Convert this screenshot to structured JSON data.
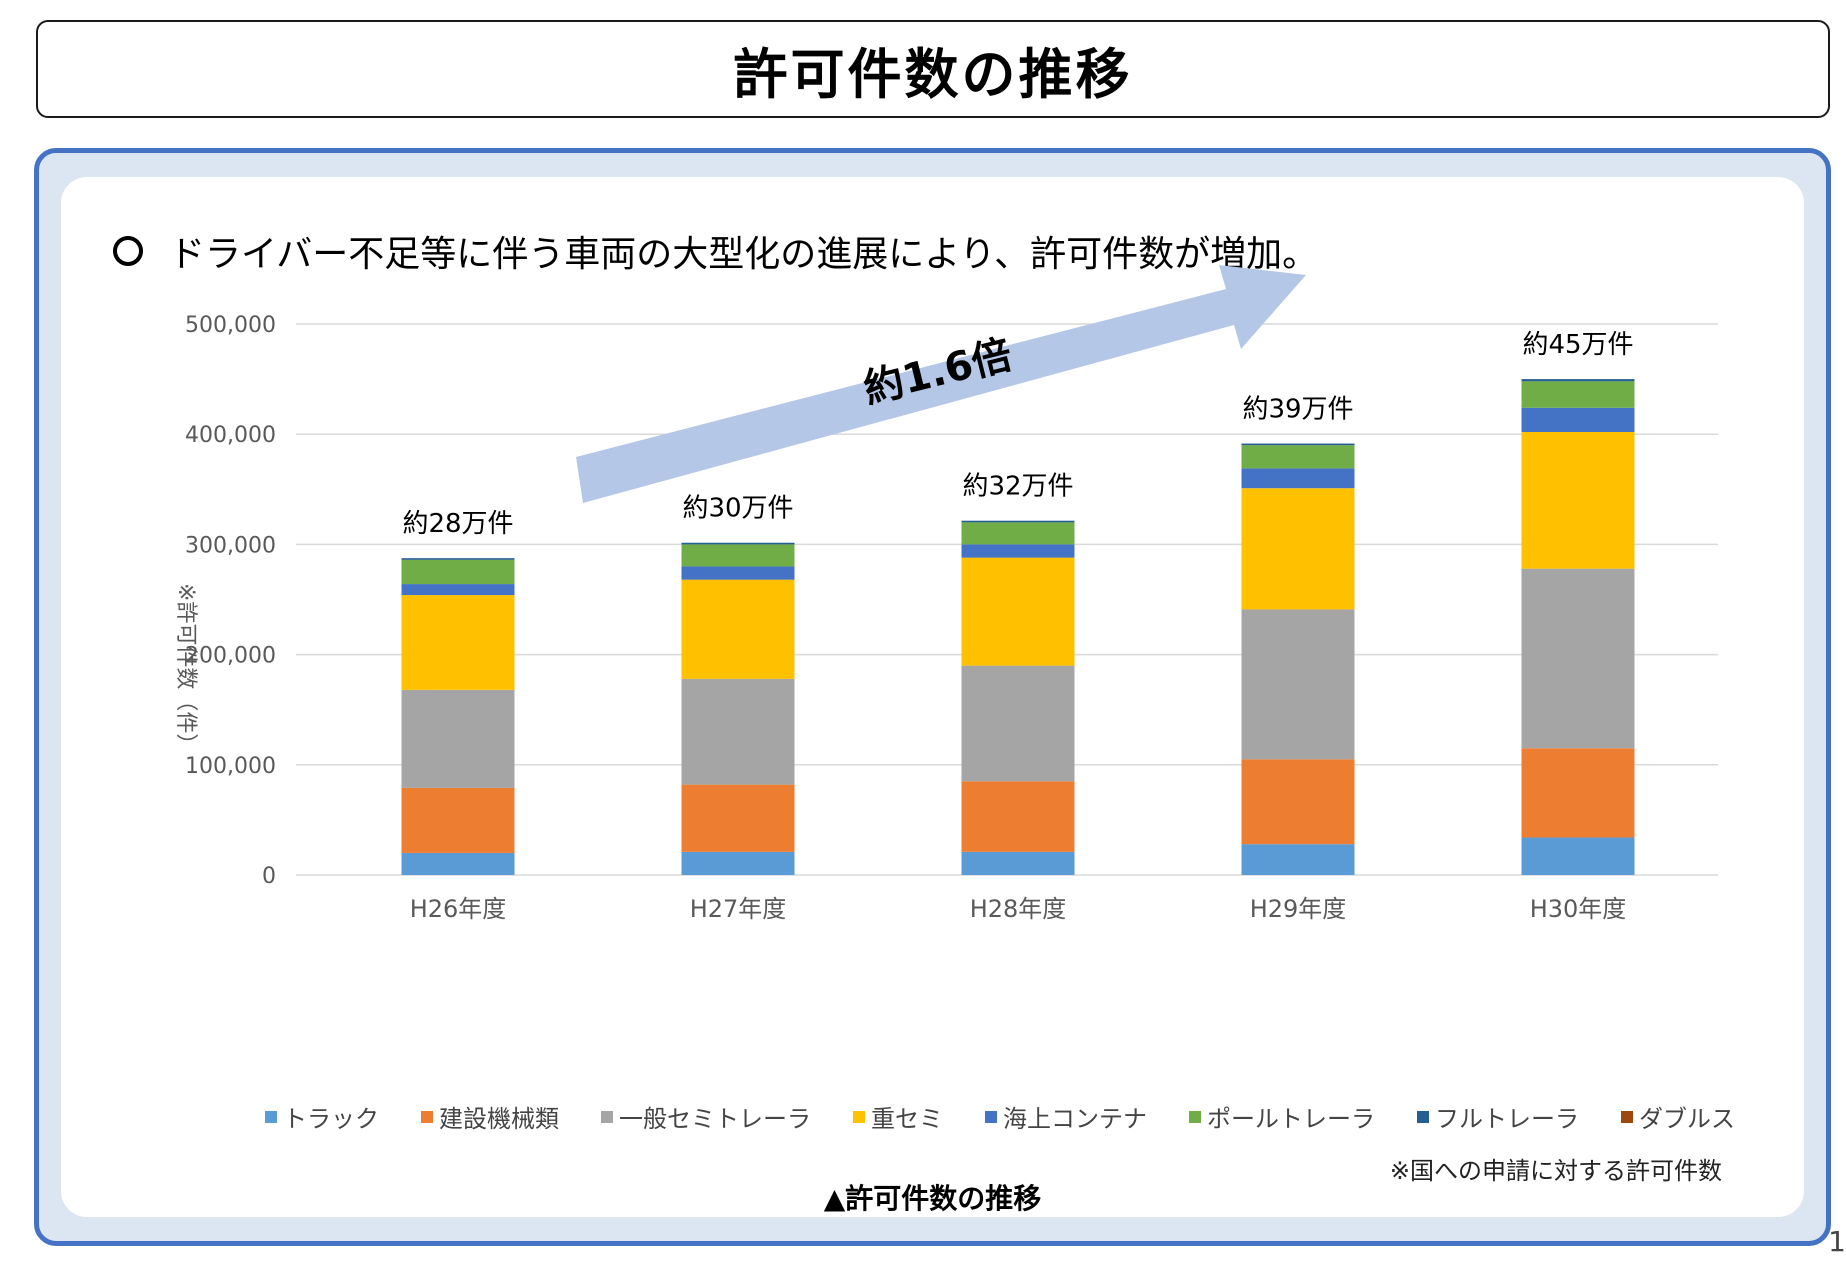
{
  "header": {
    "title": "許可件数の推移"
  },
  "lead": {
    "text": "ドライバー不足等に伴う車両の大型化の進展により、許可件数が増加。"
  },
  "chart_data": {
    "type": "bar",
    "stacked": true,
    "categories": [
      "H26年度",
      "H27年度",
      "H28年度",
      "H29年度",
      "H30年度"
    ],
    "series": [
      {
        "name": "トラック",
        "color": "#5b9bd5",
        "values": [
          20000,
          21000,
          21000,
          28000,
          34000
        ]
      },
      {
        "name": "建設機械類",
        "color": "#ed7d31",
        "values": [
          59000,
          61000,
          64000,
          77000,
          81000
        ]
      },
      {
        "name": "一般セミトレーラ",
        "color": "#a5a5a5",
        "values": [
          89000,
          96000,
          105000,
          136000,
          163000
        ]
      },
      {
        "name": "重セミ",
        "color": "#ffc000",
        "values": [
          86000,
          90000,
          98000,
          110000,
          124000
        ]
      },
      {
        "name": "海上コンテナ",
        "color": "#4472c4",
        "values": [
          10000,
          12000,
          12000,
          18000,
          22000
        ]
      },
      {
        "name": "ポールトレーラ",
        "color": "#70ad47",
        "values": [
          22000,
          20000,
          20000,
          21000,
          24000
        ]
      },
      {
        "name": "フルトレーラ",
        "color": "#255e91",
        "values": [
          1500,
          1500,
          1500,
          1500,
          2000
        ]
      },
      {
        "name": "ダブルス",
        "color": "#9e480e",
        "values": [
          0,
          0,
          0,
          0,
          0
        ]
      }
    ],
    "bar_labels": [
      "約28万件",
      "約30万件",
      "約32万件",
      "約39万件",
      "約45万件"
    ],
    "ylabel": "※許可件数（件）",
    "yticks": [
      "0",
      "100,000",
      "200,000",
      "300,000",
      "400,000",
      "500,000"
    ],
    "ylim": [
      0,
      500000
    ],
    "grid": true,
    "legend_position": "bottom",
    "annotation": {
      "text": "約1.6倍",
      "type": "arrow",
      "color": "#b4c7e7"
    }
  },
  "note": "※国への申請に対する許可件数",
  "caption": "▲許可件数の推移",
  "page_number": "1"
}
